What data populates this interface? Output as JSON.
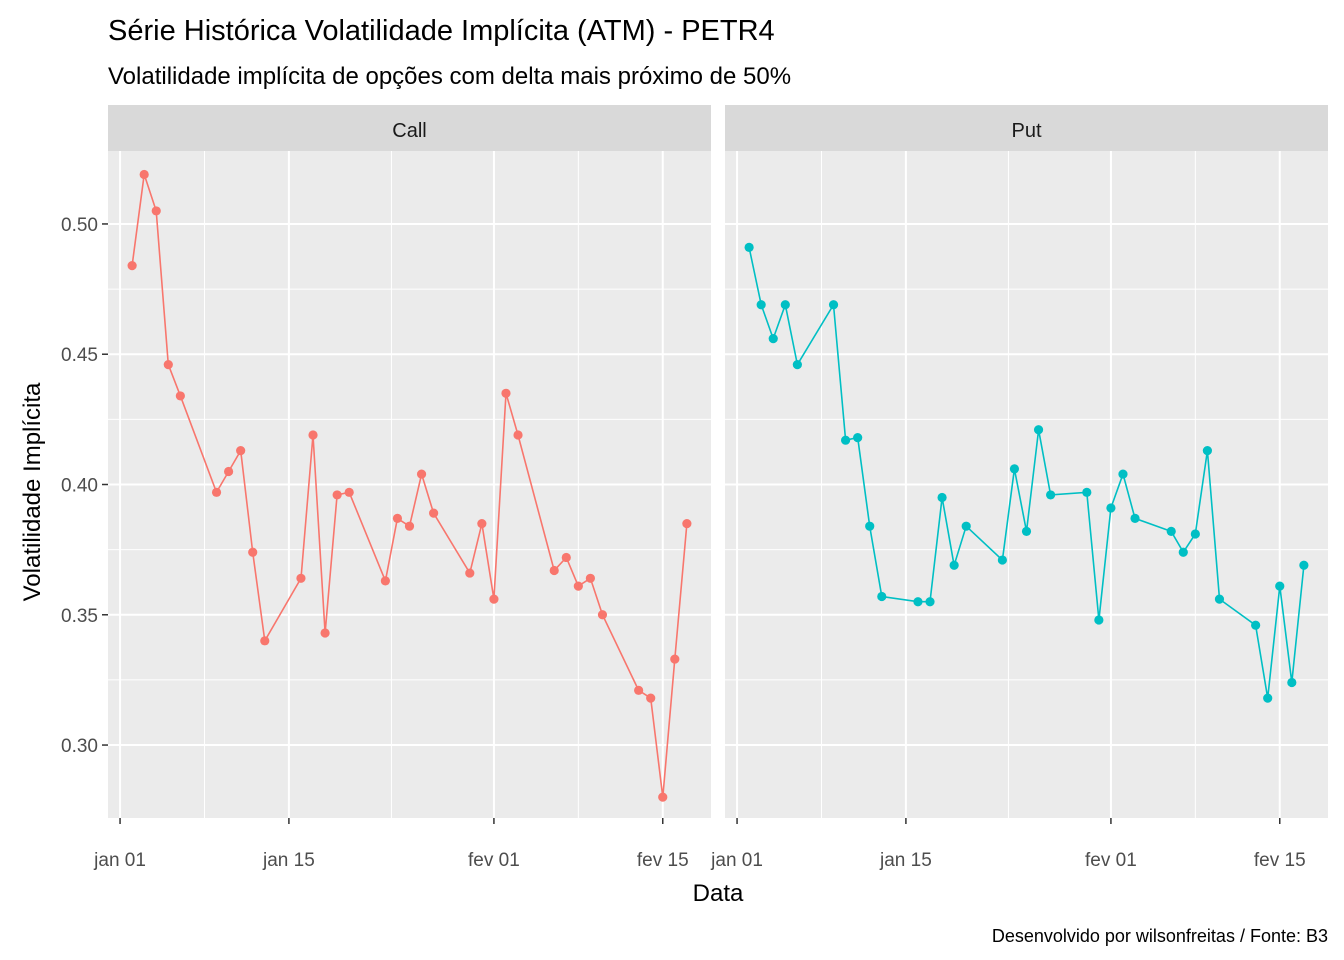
{
  "chart_data": {
    "type": "line",
    "title": "Série Histórica Volatilidade Implícita (ATM) - PETR4",
    "subtitle": "Volatilidade implícita de opções com delta mais próximo de 50%",
    "caption": "Desenvolvido por wilsonfreitas / Fonte: B3",
    "xlabel": "Data",
    "ylabel": "Volatilidade Implícita",
    "xlim": [
      "2021-01-00",
      "2021-02-19"
    ],
    "ylim": [
      0.272,
      0.528
    ],
    "x_ticks": [
      {
        "value": "2021-01-01",
        "label": "jan 01"
      },
      {
        "value": "2021-01-15",
        "label": "jan 15"
      },
      {
        "value": "2021-02-01",
        "label": "fev 01"
      },
      {
        "value": "2021-02-15",
        "label": "fev 15"
      }
    ],
    "y_ticks": [
      {
        "value": 0.3,
        "label": "0.30"
      },
      {
        "value": 0.35,
        "label": "0.35"
      },
      {
        "value": 0.4,
        "label": "0.40"
      },
      {
        "value": 0.45,
        "label": "0.45"
      },
      {
        "value": 0.5,
        "label": "0.50"
      }
    ],
    "grid": true,
    "colors": {
      "Call": "#F8766D",
      "Put": "#00BFC4",
      "panel_background": "#EBEBEB",
      "strip_background": "#D9D9D9",
      "grid": "#FFFFFF"
    },
    "facets": [
      {
        "name": "Call",
        "x": [
          "2021-01-02",
          "2021-01-03",
          "2021-01-04",
          "2021-01-05",
          "2021-01-06",
          "2021-01-09",
          "2021-01-10",
          "2021-01-11",
          "2021-01-12",
          "2021-01-13",
          "2021-01-16",
          "2021-01-17",
          "2021-01-18",
          "2021-01-19",
          "2021-01-20",
          "2021-01-23",
          "2021-01-24",
          "2021-01-25",
          "2021-01-26",
          "2021-01-27",
          "2021-01-30",
          "2021-01-31",
          "2021-02-01",
          "2021-02-02",
          "2021-02-03",
          "2021-02-06",
          "2021-02-07",
          "2021-02-08",
          "2021-02-09",
          "2021-02-10",
          "2021-02-13",
          "2021-02-14",
          "2021-02-15",
          "2021-02-16",
          "2021-02-17"
        ],
        "y": [
          0.484,
          0.519,
          0.505,
          0.446,
          0.434,
          0.397,
          0.405,
          0.413,
          0.374,
          0.34,
          0.364,
          0.419,
          0.343,
          0.396,
          0.397,
          0.363,
          0.387,
          0.384,
          0.404,
          0.389,
          0.366,
          0.385,
          0.356,
          0.435,
          0.419,
          0.367,
          0.372,
          0.361,
          0.364,
          0.35,
          0.321,
          0.318,
          0.28,
          0.333,
          0.385
        ]
      },
      {
        "name": "Put",
        "x": [
          "2021-01-02",
          "2021-01-03",
          "2021-01-04",
          "2021-01-05",
          "2021-01-06",
          "2021-01-09",
          "2021-01-10",
          "2021-01-11",
          "2021-01-12",
          "2021-01-13",
          "2021-01-16",
          "2021-01-17",
          "2021-01-18",
          "2021-01-19",
          "2021-01-20",
          "2021-01-23",
          "2021-01-24",
          "2021-01-25",
          "2021-01-26",
          "2021-01-27",
          "2021-01-30",
          "2021-01-31",
          "2021-02-01",
          "2021-02-02",
          "2021-02-03",
          "2021-02-06",
          "2021-02-07",
          "2021-02-08",
          "2021-02-09",
          "2021-02-10",
          "2021-02-13",
          "2021-02-14",
          "2021-02-15",
          "2021-02-16",
          "2021-02-17"
        ],
        "y": [
          0.491,
          0.469,
          0.456,
          0.469,
          0.446,
          0.469,
          0.417,
          0.418,
          0.384,
          0.357,
          0.355,
          0.355,
          0.395,
          0.369,
          0.384,
          0.371,
          0.406,
          0.382,
          0.421,
          0.396,
          0.397,
          0.348,
          0.391,
          0.404,
          0.387,
          0.382,
          0.374,
          0.381,
          0.413,
          0.356,
          0.346,
          0.318,
          0.361,
          0.324,
          0.369
        ]
      }
    ]
  }
}
